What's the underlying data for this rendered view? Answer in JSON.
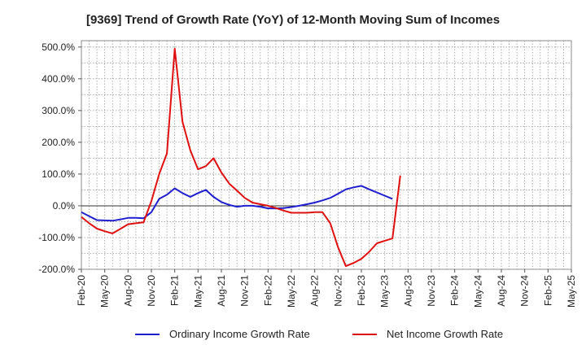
{
  "chart_data": {
    "type": "line",
    "title": "[9369]  Trend of Growth Rate (YoY) of 12-Month Moving Sum of Incomes",
    "xlabel": "",
    "ylabel": "",
    "ylim": [
      -200,
      520
    ],
    "y_ticks": [
      -200,
      -100,
      0,
      100,
      200,
      300,
      400,
      500
    ],
    "y_tick_labels": [
      "-200.0%",
      "-100.0%",
      "0.0%",
      "100.0%",
      "200.0%",
      "300.0%",
      "400.0%",
      "500.0%"
    ],
    "x_tick_labels": [
      "Feb-20",
      "May-20",
      "Aug-20",
      "Nov-20",
      "Feb-21",
      "May-21",
      "Aug-21",
      "Nov-21",
      "Feb-22",
      "May-22",
      "Aug-22",
      "Nov-22",
      "Feb-23",
      "May-23",
      "Aug-23",
      "Nov-23",
      "Feb-24",
      "May-24",
      "Aug-24",
      "Nov-24",
      "Feb-25",
      "May-25"
    ],
    "grid": true,
    "legend_position": "bottom",
    "series": [
      {
        "name": "Ordinary Income Growth Rate",
        "color": "#1f1fd0",
        "values": [
          -20,
          -33,
          -45,
          -46,
          -47,
          -43,
          -38,
          -38,
          -39,
          -20,
          22,
          35,
          55,
          40,
          28,
          40,
          50,
          28,
          12,
          3,
          -3,
          0,
          0,
          -3,
          -8,
          -8,
          -7,
          -4,
          0,
          5,
          10,
          17,
          25,
          38,
          52,
          58,
          63,
          52,
          42,
          32,
          22
        ]
      },
      {
        "name": "Net Income Growth Rate",
        "color": "#e01010",
        "values": [
          -35,
          -55,
          -72,
          -80,
          -87,
          -73,
          -58,
          -55,
          -52,
          15,
          100,
          165,
          495,
          265,
          175,
          115,
          125,
          150,
          105,
          70,
          48,
          25,
          10,
          5,
          0,
          -7,
          -15,
          -22,
          -22,
          -22,
          -20,
          -20,
          -55,
          -130,
          -190,
          -180,
          -167,
          -145,
          -118,
          -110,
          -103,
          95
        ]
      }
    ]
  }
}
